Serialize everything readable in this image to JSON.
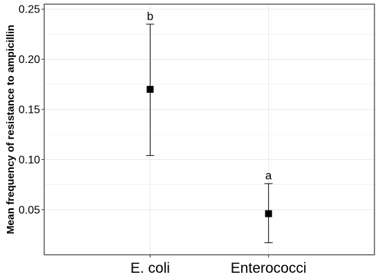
{
  "chart_data": {
    "type": "scatter",
    "title": "",
    "xlabel": "",
    "ylabel": "Mean frequency of resistance to ampicillin",
    "categories": [
      "E. coli",
      "Enterococci"
    ],
    "points": [
      {
        "category": "E. coli",
        "mean": 0.17,
        "lower": 0.104,
        "upper": 0.235,
        "letter": "b"
      },
      {
        "category": "Enterococci",
        "mean": 0.046,
        "lower": 0.017,
        "upper": 0.076,
        "letter": "a"
      }
    ],
    "y_ticks": [
      "0.05",
      "0.10",
      "0.15",
      "0.20",
      "0.25"
    ],
    "ylim": [
      0.005,
      0.255
    ],
    "grid": true,
    "error_bars": true,
    "marker": "square",
    "colors": {
      "marker": "#000000",
      "grid": "#ebebeb",
      "axis": "#333333"
    }
  }
}
